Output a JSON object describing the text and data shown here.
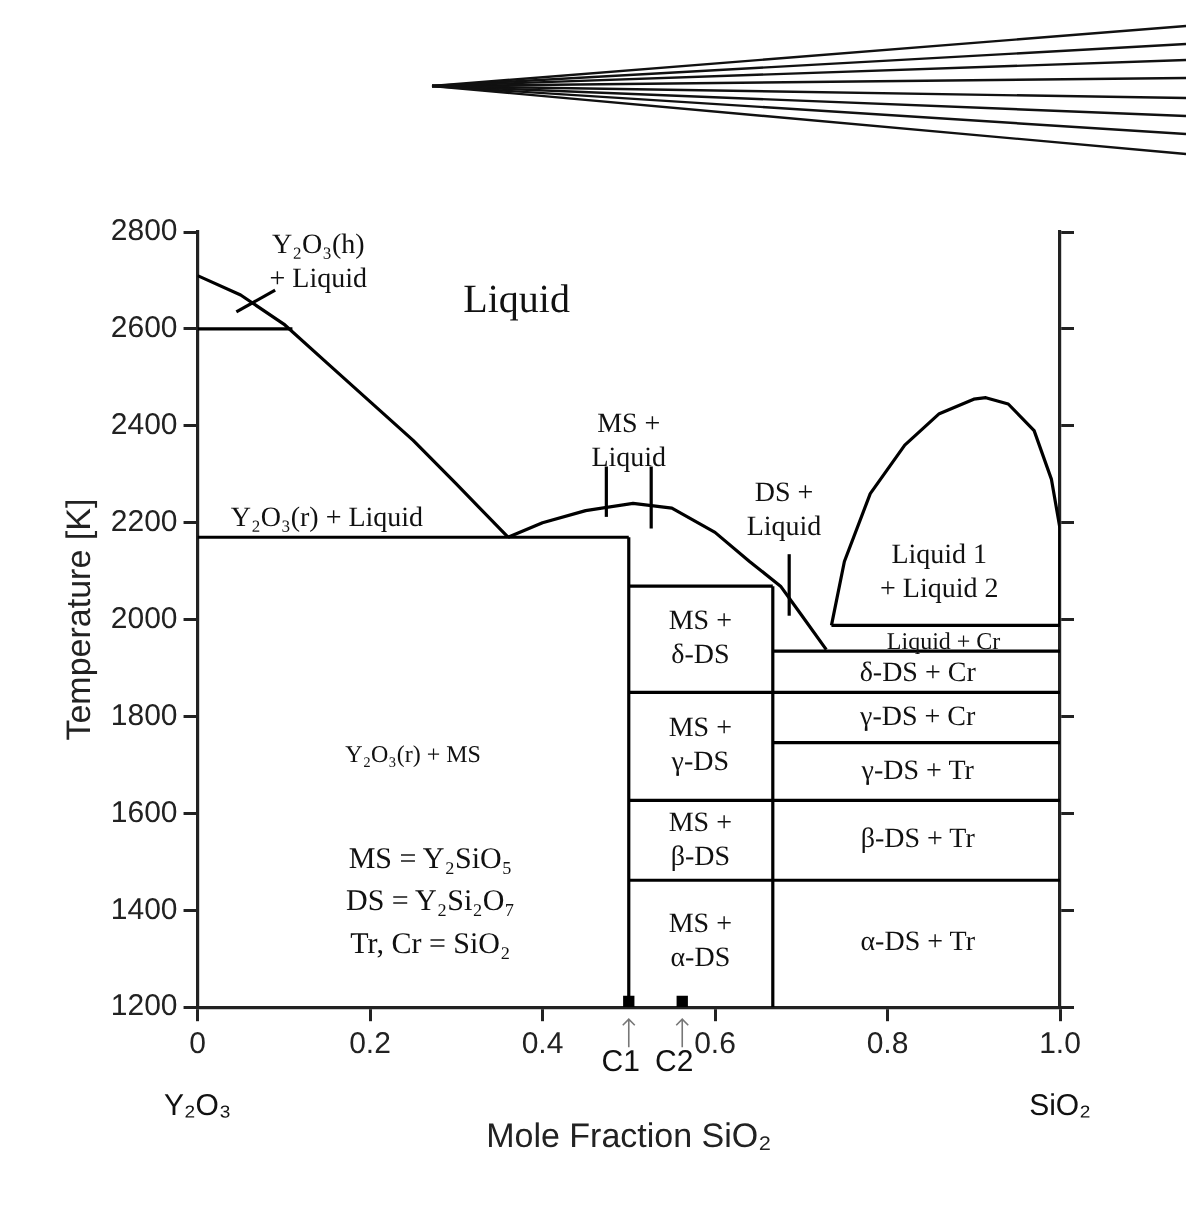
{
  "chart_data": {
    "type": "line",
    "xlabel": "Mole Fraction SiO₂",
    "ylabel": "Temperature [K]",
    "xlim": [
      0,
      1
    ],
    "xticks": [
      0,
      0.2,
      0.4,
      0.6,
      0.8,
      {
        "value": 1,
        "label": "1.0"
      }
    ],
    "ylim": [
      1200,
      2800
    ],
    "yticks": [
      1200,
      1400,
      1600,
      1800,
      2000,
      2200,
      2400,
      2600,
      2800
    ],
    "tick_labels": "xy",
    "marker": "none",
    "line_style": "solid",
    "series": [
      {
        "color": "#000000",
        "x": [
          0,
          0.05,
          0.1,
          0.15,
          0.2,
          0.25,
          0.3,
          0.36
        ],
        "values": [
          2710,
          2670,
          2610,
          2530,
          2450,
          2370,
          2280,
          2170
        ]
      },
      {
        "color": "#000000",
        "x": [
          0,
          0.11
        ],
        "values": [
          2600,
          2600
        ]
      },
      {
        "color": "#000000",
        "x": [
          0.045,
          0.09
        ],
        "values": [
          2635,
          2680
        ]
      },
      {
        "color": "#000000",
        "x": [
          0,
          0.5
        ],
        "values": [
          2170,
          2170
        ]
      },
      {
        "color": "#000000",
        "x": [
          0.5,
          0.5
        ],
        "values": [
          1200,
          2170
        ]
      },
      {
        "color": "#000000",
        "x": [
          0.36,
          0.4,
          0.45,
          0.505,
          0.55,
          0.6,
          0.64,
          0.676,
          0.7,
          0.729
        ],
        "values": [
          2170,
          2200,
          2225,
          2240,
          2230,
          2180,
          2120,
          2069,
          2010,
          1938
        ]
      },
      {
        "color": "#000000",
        "x": [
          0.474,
          0.474
        ],
        "values": [
          2212,
          2316
        ]
      },
      {
        "color": "#000000",
        "x": [
          0.526,
          0.526
        ],
        "values": [
          2188,
          2316
        ]
      },
      {
        "color": "#000000",
        "x": [
          0.686,
          0.686
        ],
        "values": [
          2008,
          2135
        ]
      },
      {
        "color": "#000000",
        "x": [
          0.5,
          0.667
        ],
        "values": [
          2069,
          2069
        ]
      },
      {
        "color": "#000000",
        "x": [
          0.667,
          0.667
        ],
        "values": [
          1200,
          2069
        ]
      },
      {
        "color": "#000000",
        "x": [
          0.735,
          0.75,
          0.78,
          0.82,
          0.86,
          0.9,
          0.914,
          0.94,
          0.97,
          0.99,
          1,
          1
        ],
        "values": [
          1988,
          2120,
          2260,
          2360,
          2425,
          2455,
          2458,
          2445,
          2390,
          2290,
          2188,
          1988
        ]
      },
      {
        "color": "#000000",
        "x": [
          0.735,
          1
        ],
        "values": [
          1988,
          1988
        ]
      },
      {
        "color": "#000000",
        "x": [
          0.667,
          1
        ],
        "values": [
          1935,
          1935
        ]
      },
      {
        "color": "#000000",
        "x": [
          0.5,
          1
        ],
        "values": [
          1850,
          1850
        ]
      },
      {
        "color": "#000000",
        "x": [
          0.667,
          1
        ],
        "values": [
          1746,
          1746
        ]
      },
      {
        "color": "#000000",
        "x": [
          0.5,
          1
        ],
        "values": [
          1627,
          1627
        ]
      },
      {
        "color": "#000000",
        "x": [
          0.5,
          1
        ],
        "values": [
          1462,
          1462
        ]
      },
      {
        "type": "scatter",
        "marker": "square",
        "color": "#000000",
        "x": [
          0.5,
          0.562
        ],
        "values": [
          1212,
          1212
        ]
      }
    ],
    "annotations": [
      "Liquid",
      "Y₂O₃(h)\n+ Liquid",
      "MS +\nLiquid",
      "Y₂O₃(r) + Liquid",
      "DS +\nLiquid",
      "Liquid 1\n+ Liquid 2",
      "Liquid + Cr",
      "δ-DS + Cr",
      "γ-DS + Cr",
      "γ-DS + Tr",
      "β-DS + Tr",
      "α-DS + Tr",
      "MS +\nδ-DS",
      "MS +\nγ-DS",
      "MS +\nβ-DS",
      "MS +\nα-DS",
      "Y₂O₃(r) + MS",
      "MS = Y₂SiO₅",
      "DS = Y₂Si₂O₇",
      "Tr, Cr = SiO₂",
      {
        "text": "C1",
        "x": 0.5,
        "y": 1200
      },
      {
        "text": "C2",
        "x": 0.562,
        "y": 1200
      },
      "Y₂O₃",
      "SiO₂"
    ]
  }
}
